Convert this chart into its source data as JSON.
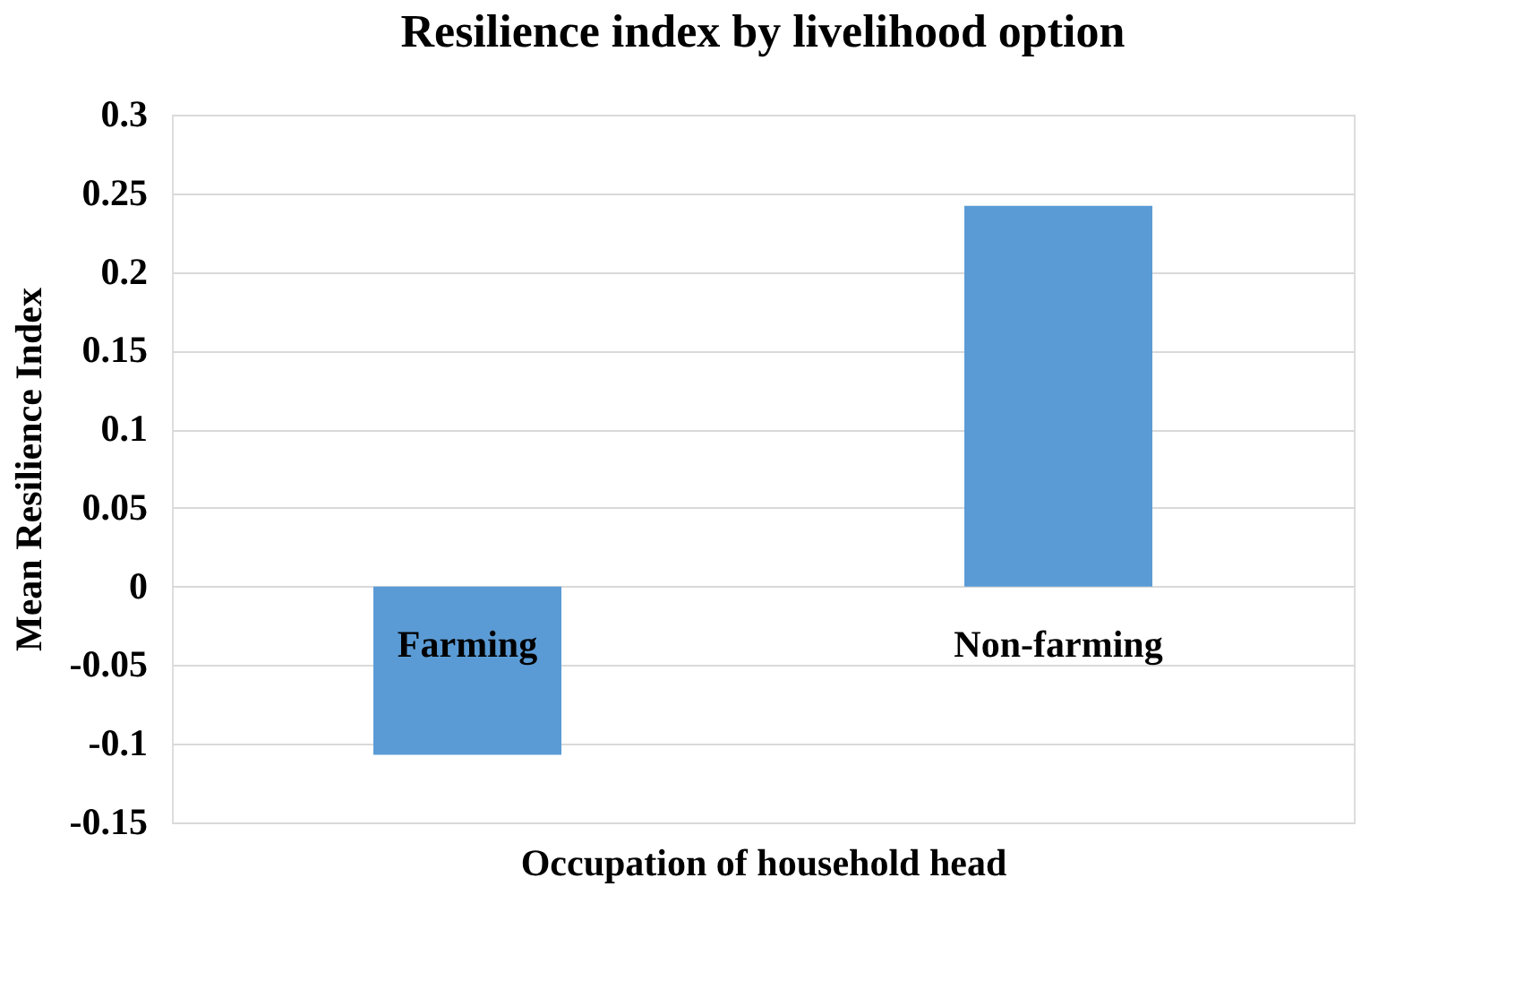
{
  "chart_data": {
    "type": "bar",
    "title": "Resilience index by livelihood option",
    "xlabel": "Occupation of household head",
    "ylabel": "Mean Resilience Index",
    "categories": [
      "Farming",
      "Non-farming"
    ],
    "series": [
      {
        "color": "#5b9bd5",
        "values": [
          -0.107,
          0.242
        ]
      }
    ],
    "ylim": [
      -0.15,
      0.3
    ],
    "yticks": [
      -0.15,
      -0.1,
      -0.05,
      0,
      0.05,
      0.1,
      0.15,
      0.2,
      0.25,
      0.3
    ],
    "grid": "y"
  }
}
